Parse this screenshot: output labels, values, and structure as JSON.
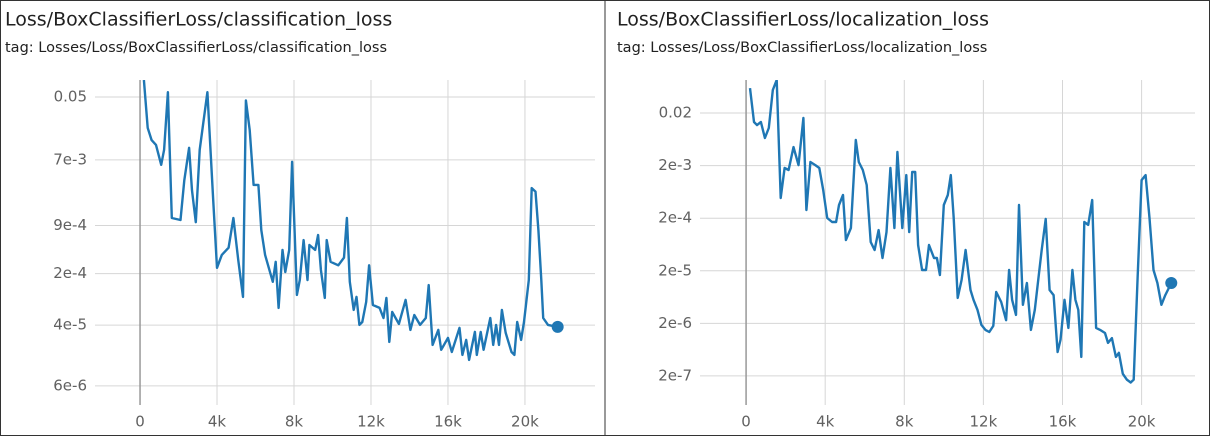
{
  "chart_data": [
    {
      "type": "line",
      "title": "Loss/BoxClassifierLoss/classification_loss",
      "subtitle": "tag: Losses/Loss/BoxClassifierLoss/classification_loss",
      "x": [
        200,
        400,
        600,
        830,
        1100,
        1250,
        1450,
        1650,
        2100,
        2300,
        2550,
        2700,
        2900,
        3100,
        3500,
        3800,
        4000,
        4250,
        4600,
        4850,
        5100,
        5350,
        5500,
        5700,
        5900,
        6150,
        6300,
        6500,
        6900,
        7050,
        7200,
        7400,
        7550,
        7750,
        7900,
        8150,
        8300,
        8500,
        8700,
        8800,
        9100,
        9250,
        9400,
        9600,
        9700,
        9900,
        10300,
        10600,
        10750,
        10900,
        11100,
        11250,
        11400,
        11550,
        11750,
        11900,
        12100,
        12450,
        12650,
        12800,
        12950,
        13100,
        13450,
        13800,
        14050,
        14250,
        14550,
        14850,
        15000,
        15200,
        15500,
        15650,
        16000,
        16200,
        16600,
        16750,
        16950,
        17100,
        17400,
        17500,
        17700,
        17850,
        18200,
        18350,
        18500,
        18650,
        18800,
        19000,
        19300,
        19450,
        19600,
        19800,
        19950,
        20200,
        20350,
        20550,
        20700,
        20850,
        20950,
        21200,
        21700
      ],
      "color": "#1f77b4",
      "values": [
        0.085,
        0.019,
        0.013,
        0.0112,
        0.006,
        0.0096,
        0.058,
        0.00114,
        0.00107,
        0.0037,
        0.0102,
        0.0027,
        0.001,
        0.0096,
        0.058,
        0.002,
        0.00024,
        0.00036,
        0.00045,
        0.00114,
        0.00031,
        9.66e-05,
        0.045,
        0.0178,
        0.0032,
        0.0032,
        0.00078,
        0.00036,
        0.000155,
        0.00029,
        6.86e-05,
        0.00042,
        0.00021,
        0.00042,
        0.0066,
        0.000103,
        0.000164,
        0.00057,
        0.000164,
        0.00049,
        0.00042,
        0.00067,
        0.000225,
        9.37e-05,
        0.00057,
        0.00029,
        0.00026,
        0.00033,
        0.00114,
        0.000155,
        6.44e-05,
        9.66e-05,
        4.03e-05,
        4.42e-05,
        8.3e-05,
        0.00026,
        7.5e-05,
        6.86e-05,
        5e-05,
        9.37e-05,
        2.37e-05,
        6.05e-05,
        4.16e-05,
        8.8e-05,
        3.45e-05,
        5.5e-05,
        4.03e-05,
        5e-05,
        0.00014,
        2.16e-05,
        3.45e-05,
        1.85e-05,
        2.69e-05,
        1.73e-05,
        3.67e-05,
        1.58e-05,
        2.52e-05,
        1.35e-05,
        3.24e-05,
        1.58e-05,
        3.24e-05,
        1.85e-05,
        5e-05,
        2.16e-05,
        4.03e-05,
        2.16e-05,
        6.44e-05,
        3.14e-05,
        1.73e-05,
        1.58e-05,
        4.42e-05,
        2.52e-05,
        4.42e-05,
        0.000164,
        0.0029,
        0.0026,
        0.00078,
        0.000164,
        5e-05,
        4.03e-05,
        3.79e-05
      ],
      "xlim": [
        -2340,
        23640
      ],
      "xticks": [
        0,
        {
          "value": 4000,
          "label": "4k"
        },
        {
          "value": 8000,
          "label": "8k"
        },
        {
          "value": 12000,
          "label": "12k"
        },
        {
          "value": 16000,
          "label": "16k"
        },
        {
          "value": 20000,
          "label": "20k"
        }
      ],
      "ylim": [
        3.3e-06,
        0.085
      ],
      "yscale": "log",
      "yticks": [
        0.05,
        {
          "value": 0.007,
          "label": "7e-3"
        },
        {
          "value": 0.0009,
          "label": "9e-4"
        },
        {
          "value": 0.0002,
          "label": "2e-4"
        },
        {
          "value": 4e-05,
          "label": "4e-5"
        },
        {
          "value": 6e-06,
          "label": "6e-6"
        }
      ],
      "grid": true,
      "last_point_marker": true
    },
    {
      "type": "line",
      "title": "Loss/BoxClassifierLoss/localization_loss",
      "subtitle": "tag: Losses/Loss/BoxClassifierLoss/localization_loss",
      "x": [
        200,
        400,
        550,
        750,
        950,
        1150,
        1350,
        1550,
        1750,
        1950,
        2150,
        2400,
        2650,
        2900,
        3050,
        3250,
        3500,
        3700,
        3900,
        4100,
        4350,
        4550,
        4700,
        4900,
        5050,
        5300,
        5550,
        5700,
        5900,
        6100,
        6300,
        6500,
        6700,
        6900,
        7100,
        7300,
        7500,
        7650,
        7900,
        8100,
        8250,
        8400,
        8550,
        8700,
        8900,
        9100,
        9250,
        9500,
        9650,
        9800,
        10000,
        10200,
        10350,
        10500,
        10700,
        10900,
        11100,
        11350,
        11500,
        11700,
        11900,
        12100,
        12300,
        12500,
        12650,
        12900,
        13150,
        13300,
        13450,
        13650,
        13800,
        14000,
        14200,
        14400,
        14600,
        14800,
        14950,
        15150,
        15350,
        15550,
        15750,
        15900,
        16100,
        16300,
        16500,
        16650,
        16800,
        16950,
        17100,
        17300,
        17500,
        17700,
        17900,
        18150,
        18300,
        18500,
        18700,
        18850,
        19050,
        19250,
        19450,
        19600,
        19800,
        20000,
        20200,
        20400,
        20600,
        20800,
        21000,
        21200,
        21500
      ],
      "color": "#1f77b4",
      "values": [
        0.0597,
        0.0135,
        0.0118,
        0.0135,
        0.0067,
        0.0104,
        0.0547,
        0.085,
        0.000484,
        0.0018,
        0.00165,
        0.0045,
        0.00205,
        0.0161,
        0.000286,
        0.00234,
        0.00205,
        0.0018,
        0.000687,
        0.000202,
        0.000169,
        0.000169,
        0.000356,
        0.000552,
        7.7e-05,
        0.00013,
        0.00614,
        0.00234,
        0.00165,
        0.000855,
        7.06e-05,
        4.97e-05,
        0.000119,
        3.5e-05,
        0.000109,
        0.0018,
        0.00013,
        0.00363,
        0.00013,
        0.00132,
        0.000109,
        0.00151,
        0.00151,
        6.18e-05,
        2.07e-05,
        2.07e-05,
        6.18e-05,
        3.5e-05,
        3.5e-05,
        1.66e-05,
        0.000356,
        0.000552,
        0.00132,
        0.000202,
        6.1e-06,
        1.34e-05,
        4.97e-05,
        8.6e-06,
        5.6e-06,
        3.6e-06,
        1.87e-06,
        1.5e-06,
        1.37e-06,
        1.79e-06,
        7.9e-06,
        5.1e-06,
        2.3e-06,
        2.07e-05,
        5.6e-06,
        2.9e-06,
        0.000356,
        4.5e-06,
        1.17e-05,
        1.5e-06,
        3.6e-06,
        1.66e-05,
        4.97e-05,
        0.000193,
        8.6e-06,
        6.9e-06,
        5.7e-07,
        9.7e-07,
        5.6e-06,
        1.64e-06,
        2.07e-05,
        5.6e-06,
        3.6e-06,
        4.6e-07,
        0.000169,
        0.000149,
        0.000444,
        1.64e-06,
        1.5e-06,
        1.31e-06,
        8.5e-07,
        1.05e-06,
        4.6e-07,
        5.5e-07,
        2.2e-07,
        1.7e-07,
        1.5e-07,
        1.7e-07,
        1.46e-05,
        0.00106,
        0.00132,
        0.000202,
        2.07e-05,
        1.17e-05,
        4.5e-06,
        6.9e-06,
        1.17e-05
      ],
      "xlim": [
        -2330,
        22700
      ],
      "xticks": [
        0,
        {
          "value": 4000,
          "label": "4k"
        },
        {
          "value": 8000,
          "label": "8k"
        },
        {
          "value": 12000,
          "label": "12k"
        },
        {
          "value": 16000,
          "label": "16k"
        },
        {
          "value": 20000,
          "label": "20k"
        }
      ],
      "ylim": [
        5.6e-08,
        0.085
      ],
      "yscale": "log",
      "yticks": [
        0.02,
        {
          "value": 0.002,
          "label": "2e-3"
        },
        {
          "value": 0.0002,
          "label": "2e-4"
        },
        {
          "value": 2e-05,
          "label": "2e-5"
        },
        {
          "value": 2e-06,
          "label": "2e-6"
        },
        {
          "value": 2e-07,
          "label": "2e-7"
        }
      ],
      "grid": true,
      "last_point_marker": true
    }
  ]
}
